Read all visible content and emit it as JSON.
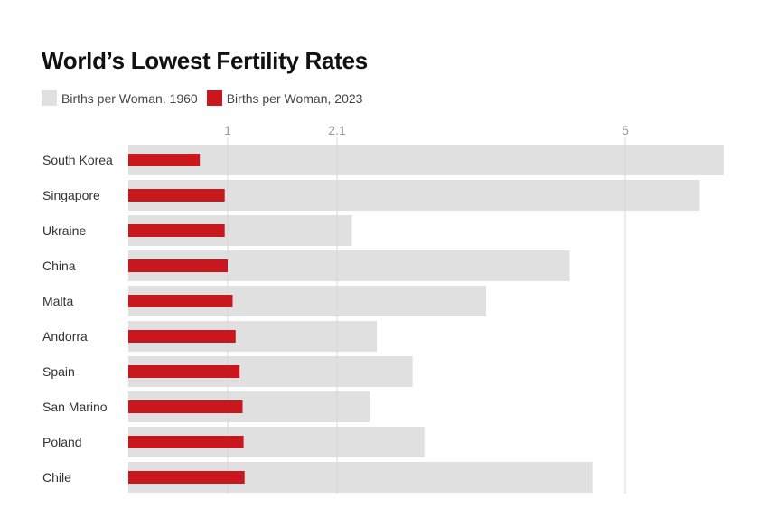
{
  "chart_data": {
    "type": "bar",
    "orientation": "horizontal",
    "title": "World’s Lowest Fertility Rates",
    "categories": [
      "South Korea",
      "Singapore",
      "Ukraine",
      "China",
      "Malta",
      "Andorra",
      "Spain",
      "San Marino",
      "Poland",
      "Chile"
    ],
    "series": [
      {
        "name": "Births per Woman, 1960",
        "color": "#e0e0e0",
        "values": [
          5.99,
          5.75,
          2.25,
          4.44,
          3.6,
          2.5,
          2.86,
          2.43,
          2.98,
          4.67
        ]
      },
      {
        "name": "Births per Woman, 2023",
        "color": "#c8181e",
        "values": [
          0.72,
          0.97,
          0.97,
          1.0,
          1.05,
          1.08,
          1.12,
          1.15,
          1.16,
          1.17
        ]
      }
    ],
    "xticks": [
      1,
      2.1,
      5
    ],
    "xtick_labels": [
      "1",
      "2.1",
      "5"
    ],
    "xlim": [
      0,
      6
    ],
    "grid": true,
    "legend_position": "top-left"
  }
}
